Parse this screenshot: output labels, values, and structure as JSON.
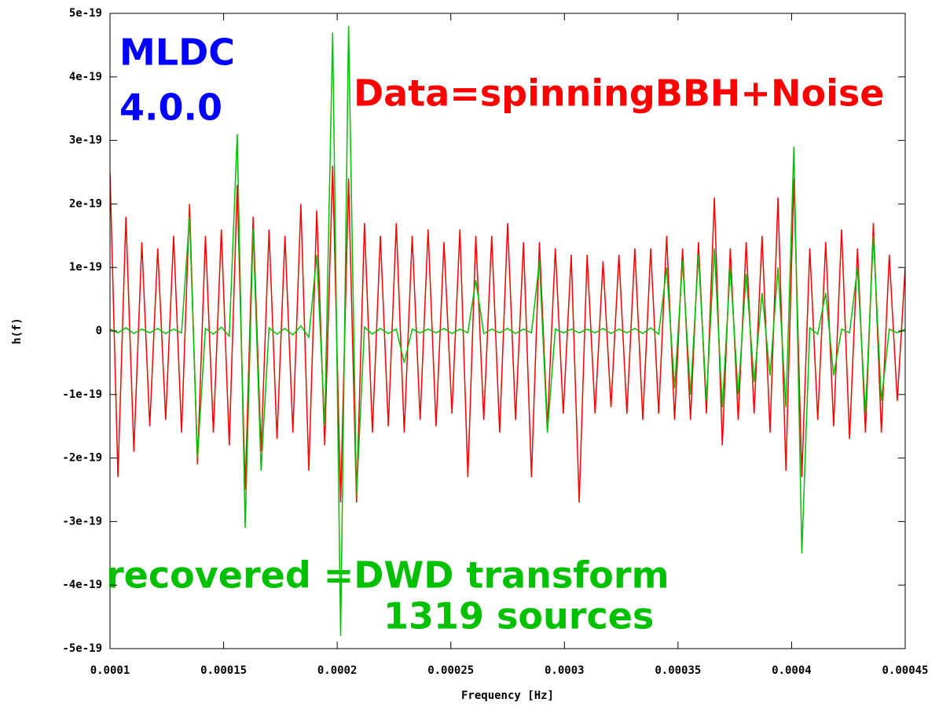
{
  "chart_data": {
    "type": "line",
    "xlabel": "Frequency [Hz]",
    "ylabel": "h(f)",
    "annotations": [
      "MLDC",
      "4.0.0",
      "Data=spinningBBH+Noise",
      "recovered =DWD transform",
      "1319 sources"
    ],
    "annotation_colors": [
      "#0000ff",
      "#0000ff",
      "#ff0000",
      "#00c000",
      "#00c000"
    ],
    "xlim": [
      0.0001,
      0.00045
    ],
    "xticks": [
      0.0001,
      0.00015,
      0.0002,
      0.00025,
      0.0003,
      0.00035,
      0.0004,
      0.00045
    ],
    "ylim": [
      -5e-19,
      5e-19
    ],
    "yticks": [
      -5e-19,
      -4e-19,
      -3e-19,
      -2e-19,
      -1e-19,
      0,
      1e-19,
      2e-19,
      3e-19,
      4e-19,
      5e-19
    ],
    "x": [
      0.0001,
      0.0001035,
      0.000107,
      0.0001105,
      0.000114,
      0.0001175,
      0.000121,
      0.0001245,
      0.000128,
      0.0001315,
      0.000135,
      0.0001385,
      0.000142,
      0.0001455,
      0.000149,
      0.0001525,
      0.000156,
      0.0001595,
      0.000163,
      0.0001665,
      0.00017,
      0.0001735,
      0.000177,
      0.0001805,
      0.000184,
      0.0001875,
      0.000191,
      0.0001945,
      0.000198,
      0.0002015,
      0.000205,
      0.0002085,
      0.000212,
      0.0002155,
      0.000219,
      0.0002225,
      0.000226,
      0.0002295,
      0.000233,
      0.0002365,
      0.00024,
      0.0002435,
      0.000247,
      0.0002505,
      0.000254,
      0.0002575,
      0.000261,
      0.0002645,
      0.000268,
      0.0002715,
      0.000275,
      0.0002785,
      0.000282,
      0.0002855,
      0.000289,
      0.0002925,
      0.000296,
      0.0002995,
      0.000303,
      0.0003065,
      0.00031,
      0.0003135,
      0.000317,
      0.0003205,
      0.000324,
      0.0003275,
      0.000331,
      0.0003345,
      0.000338,
      0.0003415,
      0.000345,
      0.0003485,
      0.000352,
      0.0003555,
      0.000359,
      0.0003625,
      0.000366,
      0.0003695,
      0.000373,
      0.0003765,
      0.00038,
      0.0003835,
      0.000387,
      0.0003905,
      0.000394,
      0.0003975,
      0.000401,
      0.0004045,
      0.000408,
      0.0004115,
      0.000415,
      0.0004185,
      0.000422,
      0.0004255,
      0.000429,
      0.0004325,
      0.000436,
      0.0004395,
      0.000443,
      0.0004465,
      0.00045
    ],
    "series": [
      {
        "color": "#ff0000",
        "values": [
          2.5e-19,
          -2.3e-19,
          1.8e-19,
          -1.9e-19,
          1.4e-19,
          -1.5e-19,
          1.3e-19,
          -1.4e-19,
          1.5e-19,
          -1.6e-19,
          2e-19,
          -2.1e-19,
          1.5e-19,
          -1.6e-19,
          1.6e-19,
          -1.8e-19,
          2.3e-19,
          -2.5e-19,
          1.8e-19,
          -1.9e-19,
          1.6e-19,
          -1.7e-19,
          1.5e-19,
          -1.6e-19,
          2e-19,
          -2.2e-19,
          1.9e-19,
          -1.8e-19,
          2.6e-19,
          -2.7e-19,
          2.4e-19,
          -2.7e-19,
          1.7e-19,
          -1.6e-19,
          1.5e-19,
          -1.5e-19,
          1.7e-19,
          -1.6e-19,
          1.5e-19,
          -1.4e-19,
          1.6e-19,
          -1.5e-19,
          1.4e-19,
          -1.3e-19,
          1.6e-19,
          -2.3e-19,
          1.5e-19,
          -1.4e-19,
          1.5e-19,
          -1.6e-19,
          1.7e-19,
          -1.4e-19,
          1.4e-19,
          -2.3e-19,
          1.4e-19,
          -1.5e-19,
          1.3e-19,
          -1.3e-19,
          1.2e-19,
          -2.7e-19,
          1.2e-19,
          -1.3e-19,
          1.1e-19,
          -1.2e-19,
          1.2e-19,
          -1.3e-19,
          1.3e-19,
          -1.4e-19,
          1.3e-19,
          -1.3e-19,
          1.5e-19,
          -1.4e-19,
          1.3e-19,
          -1.4e-19,
          1.4e-19,
          -1.3e-19,
          2.1e-19,
          -1.8e-19,
          1.3e-19,
          -1.4e-19,
          1.4e-19,
          -1.3e-19,
          1.5e-19,
          -1.6e-19,
          2.1e-19,
          -2.2e-19,
          2.4e-19,
          -2.3e-19,
          1.3e-19,
          -1.4e-19,
          1.4e-19,
          -1.5e-19,
          1.6e-19,
          -1.7e-19,
          1.3e-19,
          -1.6e-19,
          1.7e-19,
          -1.6e-19,
          1.2e-19,
          -1.1e-19,
          1e-19
        ]
      },
      {
        "color": "#00c000",
        "values": [
          3e-21,
          -3e-21,
          5e-21,
          -4e-21,
          3e-21,
          -3e-21,
          4e-21,
          -4e-21,
          3e-21,
          -3e-21,
          1.8e-19,
          -2e-19,
          4e-21,
          -5e-21,
          6e-21,
          -8e-21,
          3.1e-19,
          -3.1e-19,
          1.6e-19,
          -2.2e-19,
          5e-21,
          -5e-21,
          4e-21,
          -6e-21,
          8e-21,
          -1e-20,
          1.2e-19,
          -1.5e-19,
          4.7e-19,
          -4.8e-19,
          4.8e-19,
          -2.6e-19,
          6e-21,
          -5e-21,
          4e-21,
          -4e-21,
          3e-21,
          -5e-20,
          3e-21,
          -3e-21,
          3e-21,
          -3e-21,
          4e-21,
          -4e-21,
          3e-21,
          -3e-21,
          8e-20,
          -4e-21,
          3e-21,
          -3e-21,
          4e-21,
          -4e-21,
          3e-21,
          -3e-21,
          1.1e-19,
          -1.6e-19,
          3e-21,
          -3e-21,
          3e-21,
          -3e-21,
          3e-21,
          -3e-21,
          4e-21,
          -4e-21,
          3e-21,
          -3e-21,
          4e-21,
          -4e-21,
          5e-21,
          -5e-21,
          1e-19,
          -9e-20,
          1.1e-19,
          -1e-19,
          1.2e-19,
          -1.1e-19,
          1.3e-19,
          -1.2e-19,
          1e-19,
          -1e-19,
          9e-20,
          -8e-20,
          6e-20,
          -7e-20,
          1e-19,
          -1.2e-19,
          2.9e-19,
          -3.5e-19,
          5e-21,
          -5e-21,
          6e-20,
          -7e-20,
          3e-21,
          -3e-21,
          1e-19,
          -1.3e-19,
          1.5e-19,
          -1.1e-19,
          3e-21,
          -3e-21,
          3e-21
        ]
      }
    ]
  }
}
